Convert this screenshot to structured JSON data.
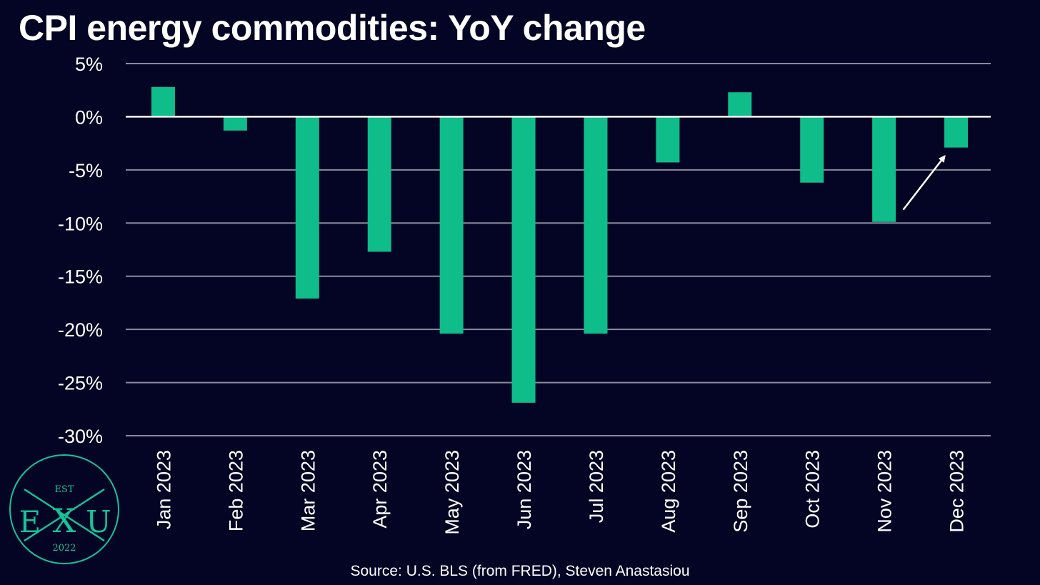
{
  "title": "CPI energy commodities: YoY change",
  "source": "Source: U.S. BLS (from FRED), Steven Anastasiou",
  "logo": {
    "top_text": "EST",
    "left_letter": "E",
    "center_letter": "X",
    "right_letter": "U",
    "bottom_text": "2022",
    "color": "#14c49a"
  },
  "colors": {
    "background": "#040424",
    "bar": "#0fbd8a",
    "grid": "#8a8a9c",
    "zero_line": "#ffffff",
    "text": "#ffffff",
    "arrow": "#ffffff"
  },
  "chart_data": {
    "type": "bar",
    "title": "CPI energy commodities: YoY change",
    "xlabel": "",
    "ylabel": "",
    "ylim": [
      -30,
      5
    ],
    "yticks": [
      5,
      0,
      -5,
      -10,
      -15,
      -20,
      -25,
      -30
    ],
    "ytick_labels": [
      "5%",
      "0%",
      "-5%",
      "-10%",
      "-15%",
      "-20%",
      "-25%",
      "-30%"
    ],
    "grid": true,
    "legend": "none",
    "categories": [
      "Jan 2023",
      "Feb 2023",
      "Mar 2023",
      "Apr 2023",
      "May 2023",
      "Jun 2023",
      "Jul 2023",
      "Aug 2023",
      "Sep 2023",
      "Oct 2023",
      "Nov 2023",
      "Dec 2023"
    ],
    "values": [
      2.8,
      -1.3,
      -17.1,
      -12.7,
      -20.4,
      -26.9,
      -20.4,
      -4.3,
      2.3,
      -6.2,
      -9.9,
      -2.9
    ],
    "annotations": [
      {
        "type": "arrow",
        "target_category": "Dec 2023"
      }
    ]
  }
}
